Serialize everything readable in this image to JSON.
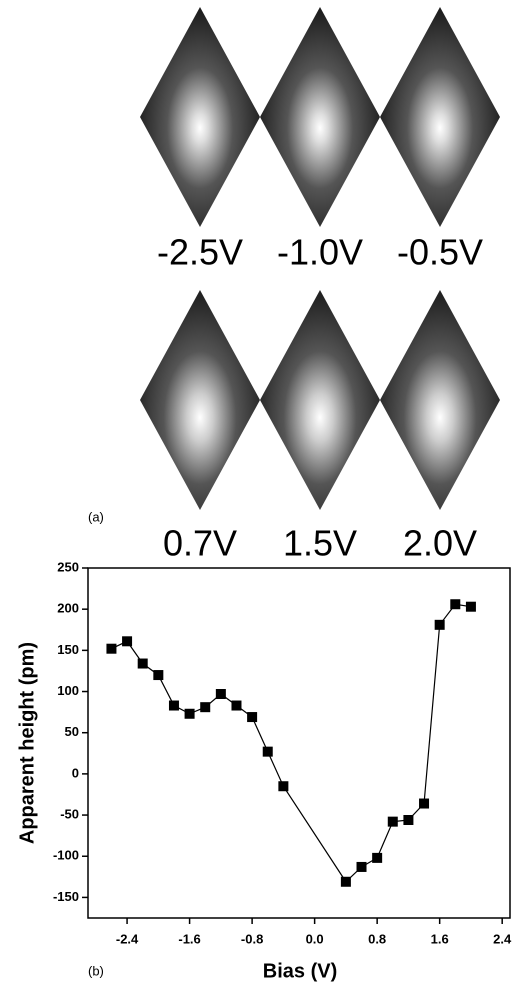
{
  "panel_a": {
    "label": "(a)",
    "images": [
      "-2.5V",
      "-1.0V",
      "-0.5V",
      "0.7V",
      "1.5V",
      "2.0V"
    ]
  },
  "panel_b": {
    "label": "(b)"
  },
  "chart_data": {
    "type": "line",
    "x_label": "Bias (V)",
    "y_label": "Apparent height (pm)",
    "x": [
      -2.6,
      -2.4,
      -2.2,
      -2.0,
      -1.8,
      -1.6,
      -1.4,
      -1.2,
      -1.0,
      -0.8,
      -0.6,
      -0.4,
      0.4,
      0.6,
      0.8,
      1.0,
      1.2,
      1.4,
      1.6,
      1.8,
      2.0
    ],
    "series": [
      {
        "color": "#000000",
        "values": [
          152,
          161,
          134,
          120,
          83,
          73,
          81,
          97,
          83,
          69,
          27,
          -15,
          -131,
          -113,
          -102,
          -58,
          -56,
          -36,
          181,
          206,
          203
        ]
      }
    ],
    "xlim": [
      -2.9,
      2.5
    ],
    "ylim": [
      -175,
      250
    ],
    "xticks": [
      -2.4,
      -1.6,
      -0.8,
      {
        "value": 0,
        "label": "0.0"
      },
      0.8,
      1.6,
      2.4
    ],
    "yticks": [
      -150,
      -100,
      -50,
      0,
      50,
      100,
      150,
      200,
      250
    ]
  }
}
